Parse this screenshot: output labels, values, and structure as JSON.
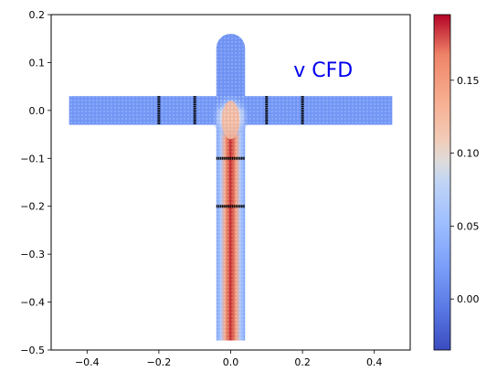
{
  "chart_data": {
    "type": "scatter",
    "title": "",
    "xlabel": "",
    "ylabel": "",
    "xlim": [
      -0.5,
      0.5
    ],
    "ylim": [
      -0.5,
      0.2
    ],
    "x_ticks": [
      "−0.4",
      "−0.2",
      "0.0",
      "0.2",
      "0.4"
    ],
    "x_tick_values": [
      -0.4,
      -0.2,
      0.0,
      0.2,
      0.4
    ],
    "y_ticks": [
      "0.2",
      "0.1",
      "0.0",
      "−0.1",
      "−0.2",
      "−0.3",
      "−0.4",
      "−0.5"
    ],
    "y_tick_values": [
      0.2,
      0.1,
      0.0,
      -0.1,
      -0.2,
      -0.3,
      -0.4,
      -0.5
    ],
    "annotation": {
      "text": "v CFD",
      "x": 0.175,
      "y": 0.07,
      "color": "#0000ee"
    },
    "grid": false,
    "domain": {
      "horizontal_channel": {
        "x": [
          -0.45,
          0.45
        ],
        "y": [
          -0.03,
          0.03
        ]
      },
      "vertical_channel": {
        "x": [
          -0.04,
          0.04
        ],
        "y": [
          -0.48,
          0.0
        ]
      },
      "top_stub": {
        "x": [
          -0.04,
          0.04
        ],
        "y": [
          0.03,
          0.13
        ],
        "cap_radius": 0.04
      }
    },
    "probe_lines": [
      {
        "orientation": "vertical",
        "x": -0.2,
        "y": [
          -0.03,
          0.03
        ]
      },
      {
        "orientation": "vertical",
        "x": -0.1,
        "y": [
          -0.03,
          0.03
        ]
      },
      {
        "orientation": "vertical",
        "x": 0.1,
        "y": [
          -0.03,
          0.03
        ]
      },
      {
        "orientation": "vertical",
        "x": 0.2,
        "y": [
          -0.03,
          0.03
        ]
      },
      {
        "orientation": "horizontal",
        "y": -0.1,
        "x": [
          -0.04,
          0.04
        ]
      },
      {
        "orientation": "horizontal",
        "y": -0.2,
        "x": [
          -0.04,
          0.04
        ]
      }
    ],
    "colorbar": {
      "colormap": "coolwarm",
      "range": [
        -0.035,
        0.195
      ],
      "ticks": [
        "0.15",
        "0.10",
        "0.05",
        "0.00"
      ],
      "tick_values": [
        0.15,
        0.1,
        0.05,
        0.0
      ]
    },
    "field_values": {
      "channel_background": 0.0,
      "vertical_jet_peak": 0.19,
      "top_stub": -0.005,
      "junction_peak": 0.09
    }
  }
}
